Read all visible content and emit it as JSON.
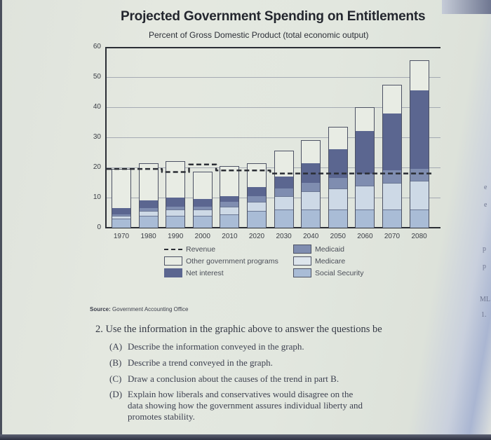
{
  "chart_data": {
    "type": "bar",
    "stacked": true,
    "title": "Projected Government Spending on Entitlements",
    "subtitle": "Percent of Gross Domestic Product (total economic output)",
    "xlabel": "",
    "ylabel": "Percent of GDP",
    "ylim": [
      0,
      60
    ],
    "yticks": [
      0,
      10,
      20,
      30,
      40,
      50,
      60
    ],
    "grid": true,
    "legend_position": "bottom",
    "categories": [
      "1970",
      "1980",
      "1990",
      "2000",
      "2010",
      "2020",
      "2030",
      "2040",
      "2050",
      "2060",
      "2070",
      "2080"
    ],
    "series": [
      {
        "name": "Social Security",
        "values": [
          3,
          4,
          4,
          4,
          4.5,
          5.5,
          6,
          6,
          6,
          6,
          6,
          6
        ]
      },
      {
        "name": "Medicare",
        "values": [
          1,
          1.5,
          2,
          2,
          2.5,
          3,
          4.5,
          6,
          7,
          8,
          9,
          9.5
        ]
      },
      {
        "name": "Medicaid",
        "values": [
          0.5,
          1,
          1,
          1,
          1.5,
          2,
          2.5,
          3,
          3.5,
          4,
          4,
          4
        ]
      },
      {
        "name": "Net interest",
        "values": [
          2,
          2.5,
          3,
          2.5,
          2,
          3,
          4,
          6.5,
          9.5,
          14,
          19,
          26
        ]
      },
      {
        "name": "Other government programs",
        "values": [
          13,
          12.5,
          12,
          9,
          10,
          8,
          8.5,
          7.5,
          7.5,
          8,
          9.5,
          10
        ]
      }
    ],
    "line_series": [
      {
        "name": "Revenue",
        "style": "dashed",
        "values": [
          19.5,
          19.5,
          18.5,
          21,
          19,
          19,
          18,
          18,
          18,
          18,
          18,
          18
        ]
      }
    ],
    "source": "Source: Government Accounting Office"
  },
  "header": {
    "title": "Projected Government Spending on Entitlements",
    "subtitle": "Percent of Gross Domestic Product (total economic output)"
  },
  "axis": {
    "y_ticks": [
      "60",
      "50",
      "40",
      "30",
      "20",
      "10",
      "0"
    ],
    "x_ticks": [
      "1970",
      "1980",
      "1990",
      "2000",
      "2010",
      "2020",
      "2030",
      "2040",
      "2050",
      "2060",
      "2070",
      "2080"
    ]
  },
  "legend": {
    "revenue": "Revenue",
    "other": "Other government programs",
    "net_interest": "Net interest",
    "medicaid": "Medicaid",
    "medicare": "Medicare",
    "social_security": "Social Security"
  },
  "source": {
    "label": "Source:",
    "text": "Government Accounting Office"
  },
  "question": {
    "main": "2. Use the information in the graphic above to answer the questions be",
    "parts": [
      {
        "label": "(A)",
        "text": "Describe the information conveyed in the graph."
      },
      {
        "label": "(B)",
        "text": "Describe a trend conveyed in the graph."
      },
      {
        "label": "(C)",
        "text": "Draw a conclusion about the causes of the trend in part B."
      },
      {
        "label": "(D)",
        "text": "Explain how liberals and conservatives would disagree on the"
      },
      {
        "label": "",
        "text": "data showing how the government assures individual liberty and"
      },
      {
        "label": "",
        "text": "promotes stability."
      }
    ]
  },
  "right_page_fragments": [
    "e",
    "e",
    "e",
    "p",
    "a",
    "p",
    "ML",
    "1."
  ],
  "colors": {
    "social_security": "#a9bcd6",
    "medicare": "#cdd9e6",
    "medicaid": "#7f8db0",
    "net_interest": "#5b6690",
    "other": "#e8ece4",
    "revenue": "#2b2e35"
  }
}
